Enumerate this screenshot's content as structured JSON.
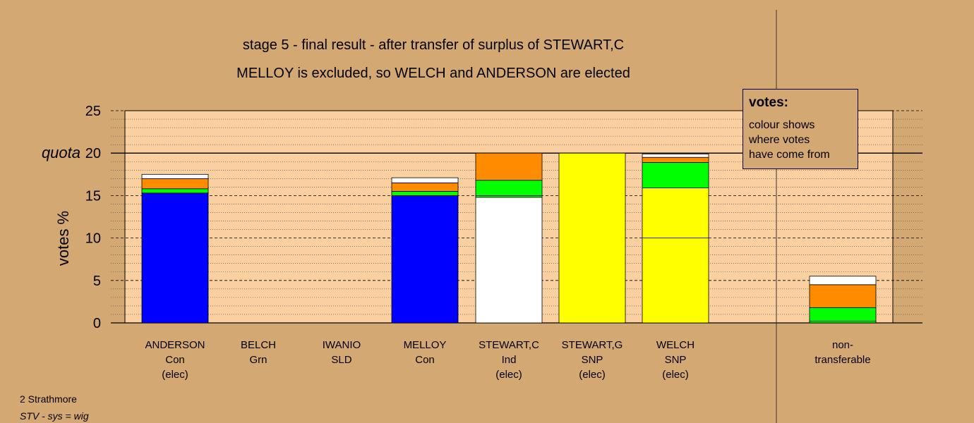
{
  "chart_data": {
    "type": "bar",
    "stacked": true,
    "title": "stage 5 - final result - after transfer of surplus of STEWART,C",
    "subtitle": "MELLOY is excluded, so WELCH and ANDERSON are elected",
    "ylabel": "votes %",
    "ylim": [
      0,
      25
    ],
    "yticks": [
      0,
      5,
      10,
      15,
      20,
      25
    ],
    "quota": {
      "label": "quota",
      "value": 20
    },
    "colors": {
      "Con": "#0000FF",
      "SNP": "#FFFF00",
      "Ind": "#FFFFFF",
      "Grn": "#00FF00",
      "orange": "#FF8C00",
      "white": "#FFFFFF"
    },
    "candidates": [
      {
        "name": "ANDERSON",
        "party": "Con",
        "status": "(elec)",
        "segments": [
          {
            "color": "#0000FF",
            "value": 15.3
          },
          {
            "color": "#00FF00",
            "value": 0.5
          },
          {
            "color": "#FF8C00",
            "value": 1.2
          },
          {
            "color": "#FFFFFF",
            "value": 0.5
          }
        ]
      },
      {
        "name": "BELCH",
        "party": "Grn",
        "status": "",
        "segments": []
      },
      {
        "name": "IWANIO",
        "party": "SLD",
        "status": "",
        "segments": []
      },
      {
        "name": "MELLOY",
        "party": "Con",
        "status": "",
        "segments": [
          {
            "color": "#0000FF",
            "value": 15.0
          },
          {
            "color": "#00FF00",
            "value": 0.5
          },
          {
            "color": "#FF8C00",
            "value": 1.0
          },
          {
            "color": "#FFFFFF",
            "value": 0.6
          }
        ]
      },
      {
        "name": "STEWART,C",
        "party": "Ind",
        "status": "(elec)",
        "segments": [
          {
            "color": "#FFFFFF",
            "value": 14.8
          },
          {
            "color": "#00FF00",
            "value": 0.2
          },
          {
            "color": "#00FF00",
            "value": 1.8
          },
          {
            "color": "#FF8C00",
            "value": 3.2
          }
        ]
      },
      {
        "name": "STEWART,G",
        "party": "SNP",
        "status": "(elec)",
        "segments": [
          {
            "color": "#FFFF00",
            "value": 20.0
          }
        ]
      },
      {
        "name": "WELCH",
        "party": "SNP",
        "status": "(elec)",
        "segments": [
          {
            "color": "#FFFF00",
            "value": 10.0
          },
          {
            "color": "#FFFF00",
            "value": 5.9
          },
          {
            "color": "#00FF00",
            "value": 3.0
          },
          {
            "color": "#FF8C00",
            "value": 0.6
          },
          {
            "color": "#FFFFFF",
            "value": 0.4
          }
        ]
      }
    ],
    "nontransferable": {
      "label1": "non-",
      "label2": "transferable",
      "segments": [
        {
          "color": "#00FF00",
          "value": 0.2
        },
        {
          "color": "#00FF00",
          "value": 1.6
        },
        {
          "color": "#FF8C00",
          "value": 2.7
        },
        {
          "color": "#FFFFFF",
          "value": 1.0
        }
      ]
    }
  },
  "legend": {
    "heading": "votes:",
    "lines": [
      "colour shows",
      "where votes",
      "have come from"
    ]
  },
  "footer": {
    "constituency": "2 Strathmore",
    "system": "STV - sys = wig"
  }
}
